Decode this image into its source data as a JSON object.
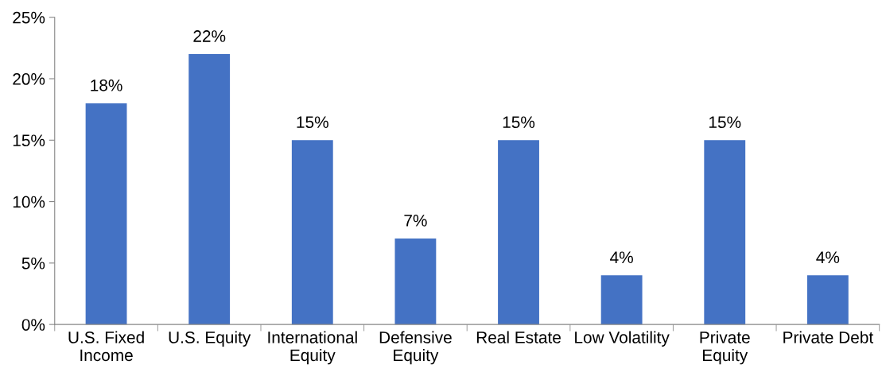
{
  "chart_data": {
    "type": "bar",
    "categories": [
      "U.S. Fixed\nIncome",
      "U.S. Equity",
      "International\nEquity",
      "Defensive\nEquity",
      "Real Estate",
      "Low Volatility",
      "Private\nEquity",
      "Private Debt"
    ],
    "values": [
      18,
      22,
      15,
      7,
      15,
      4,
      15,
      4
    ],
    "value_labels": [
      "18%",
      "22%",
      "15%",
      "7%",
      "15%",
      "4%",
      "15%",
      "4%"
    ],
    "color": "#4472c4",
    "ylim": [
      0,
      25
    ],
    "yticks": [
      {
        "value": 0,
        "label": "0%"
      },
      {
        "value": 5,
        "label": "5%"
      },
      {
        "value": 10,
        "label": "10%"
      },
      {
        "value": 15,
        "label": "15%"
      },
      {
        "value": 20,
        "label": "20%"
      },
      {
        "value": 25,
        "label": "25%"
      }
    ],
    "grid": false,
    "legend": false
  }
}
